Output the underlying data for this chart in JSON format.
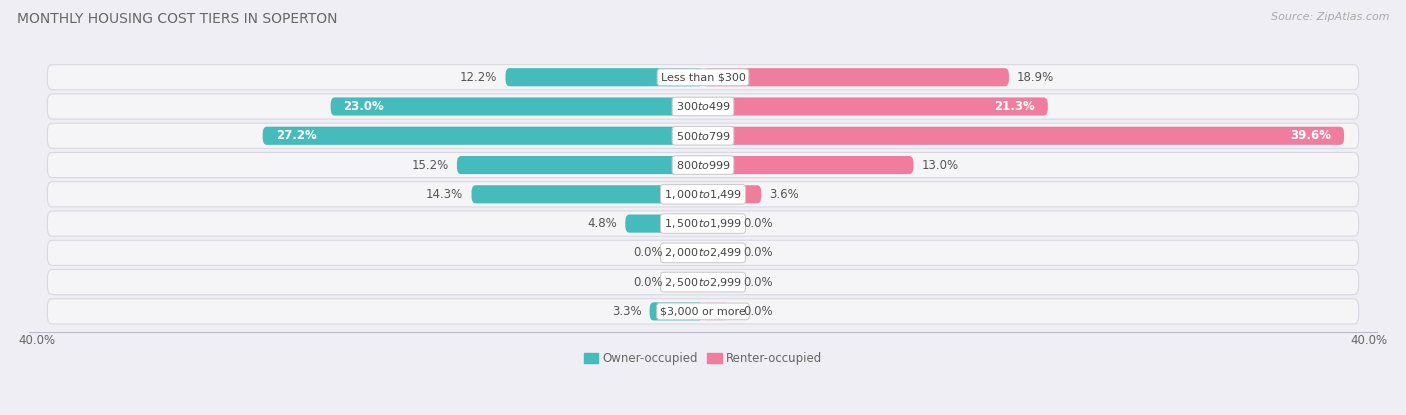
{
  "title": "MONTHLY HOUSING COST TIERS IN SOPERTON",
  "source": "Source: ZipAtlas.com",
  "categories": [
    "Less than $300",
    "$300 to $499",
    "$500 to $799",
    "$800 to $999",
    "$1,000 to $1,499",
    "$1,500 to $1,999",
    "$2,000 to $2,499",
    "$2,500 to $2,999",
    "$3,000 or more"
  ],
  "owner_values": [
    12.2,
    23.0,
    27.2,
    15.2,
    14.3,
    4.8,
    0.0,
    0.0,
    3.3
  ],
  "renter_values": [
    18.9,
    21.3,
    39.6,
    13.0,
    3.6,
    0.0,
    0.0,
    0.0,
    0.0
  ],
  "owner_color": "#45BBBB",
  "renter_color": "#F07C9E",
  "owner_color_zero": "#85CCCC",
  "renter_color_zero": "#F5A8C0",
  "background_color": "#EEEEF4",
  "row_bg_color": "#E8E8EE",
  "row_inner_color": "#F5F5F8",
  "max_value": 40.0,
  "axis_label": "40.0%",
  "title_fontsize": 10,
  "source_fontsize": 8,
  "label_fontsize": 8.5,
  "category_fontsize": 8,
  "legend_fontsize": 8.5
}
